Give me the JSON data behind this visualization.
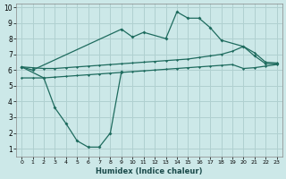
{
  "xlabel": "Humidex (Indice chaleur)",
  "bg_color": "#cce8e8",
  "grid_color": "#b0d0d0",
  "line_color": "#1e6b5e",
  "xlim": [
    -0.5,
    23.5
  ],
  "ylim": [
    0.5,
    10.2
  ],
  "x_all": [
    0,
    1,
    2,
    3,
    4,
    5,
    6,
    7,
    8,
    9,
    10,
    11,
    12,
    13,
    14,
    15,
    16,
    17,
    18,
    19,
    20,
    21,
    22,
    23
  ],
  "line_top": [
    6.2,
    6.0,
    null,
    null,
    null,
    null,
    null,
    null,
    null,
    8.6,
    8.1,
    8.4,
    null,
    8.0,
    9.7,
    9.3,
    9.3,
    8.7,
    7.9,
    null,
    7.5,
    6.9,
    6.4,
    6.4
  ],
  "line_dip": [
    6.2,
    null,
    5.5,
    3.6,
    2.6,
    1.5,
    1.1,
    1.1,
    2.0,
    5.9,
    null,
    null,
    null,
    null,
    null,
    null,
    null,
    null,
    null,
    null,
    null,
    null,
    null,
    null
  ],
  "line_upper_flat": [
    6.2,
    6.15,
    6.1,
    6.1,
    6.15,
    6.2,
    6.25,
    6.3,
    6.35,
    6.4,
    6.45,
    6.5,
    6.55,
    6.6,
    6.65,
    6.7,
    6.8,
    6.9,
    7.0,
    7.2,
    7.5,
    7.1,
    6.5,
    6.45
  ],
  "line_lower_flat": [
    5.5,
    5.5,
    5.5,
    5.55,
    5.6,
    5.65,
    5.7,
    5.75,
    5.8,
    5.85,
    5.9,
    5.95,
    6.0,
    6.05,
    6.1,
    6.15,
    6.2,
    6.25,
    6.3,
    6.35,
    6.1,
    6.15,
    6.25,
    6.35
  ]
}
